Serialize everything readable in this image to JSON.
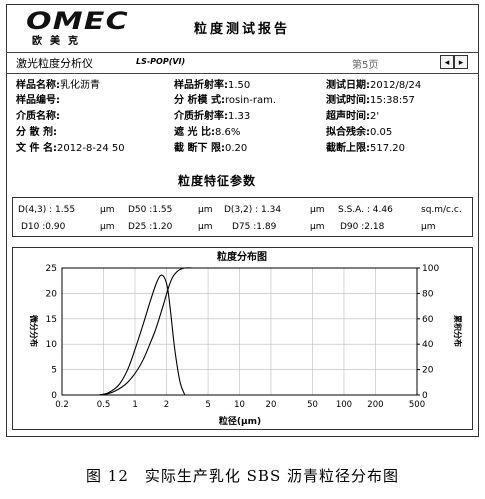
{
  "header": {
    "logo_text": "OMEC",
    "logo_sub": "欧美克",
    "report_title": "粒度测试报告"
  },
  "instrument": {
    "name": "激光粒度分析仪",
    "model": "LS-POP(VI)",
    "page": "第5页",
    "prev_icon": "◂",
    "next_icon": "▸"
  },
  "info": {
    "sample_name_label": "样品名称:",
    "sample_name_value": "乳化沥青",
    "sample_ri_label": "样品折射率:",
    "sample_ri_value": "1.50",
    "test_date_label": "测试日期:",
    "test_date_value": "2012/8/24",
    "sample_no_label": "样品编号:",
    "analysis_mode_label": "分 析模 式:",
    "analysis_mode_value": "rosin-ram.",
    "test_time_label": "测试时间:",
    "test_time_value": "15:38:57",
    "medium_name_label": "介质名称:",
    "medium_ri_label": "介质折射率:",
    "medium_ri_value": "1.33",
    "ultrasonic_label": "超声时间:",
    "ultrasonic_value": "2'",
    "dispersant_label": "分 散 剂:",
    "shading_label": "遮 光 比:",
    "shading_value": "8.6%",
    "residual_label": "拟合残余:",
    "residual_value": "0.05",
    "file_label": "文 件 名:",
    "file_value": "2012-8-24 50",
    "cut_lower_label": "截 断下 限:",
    "cut_lower_value": "0.20",
    "cut_upper_label": "截断上限:",
    "cut_upper_value": "517.20"
  },
  "params": {
    "title": "粒度特征参数",
    "d43_label": "D(4,3) :",
    "d43_value": "1.55",
    "d43_unit": "μm",
    "d50_label": "D50 :",
    "d50_value": "1.55",
    "d50_unit": "μm",
    "d32_label": "D(3,2) :",
    "d32_value": "1.34",
    "d32_unit": "μm",
    "ssa_label": "S.S.A. :",
    "ssa_value": "4.46",
    "ssa_unit": "sq.m/c.c.",
    "d10_label": "D10 :",
    "d10_value": "0.90",
    "d10_unit": "μm",
    "d25_label": "D25 :",
    "d25_value": "1.20",
    "d25_unit": "μm",
    "d75_label": "D75 :",
    "d75_value": "1.89",
    "d75_unit": "μm",
    "d90_label": "D90 :",
    "d90_value": "2.18",
    "d90_unit": "μm"
  },
  "chart_data": {
    "type": "line",
    "title": "粒度分布图",
    "xlabel": "粒径(μm)",
    "ylabel_left": "微分分布",
    "ylabel_right": "累积分布",
    "x_scale": "log",
    "xlim": [
      0.2,
      500
    ],
    "ylim_left": [
      0,
      25
    ],
    "ylim_right": [
      0,
      100
    ],
    "x_ticks": [
      "0.2",
      "0.5",
      "1",
      "2",
      "5",
      "10",
      "20",
      "50",
      "100",
      "200",
      "500"
    ],
    "y_ticks_left": [
      "0",
      "5",
      "10",
      "15",
      "20",
      "25"
    ],
    "y_ticks_right": [
      "0",
      "20",
      "40",
      "60",
      "80",
      "100"
    ],
    "grid": true,
    "series": [
      {
        "axis": "left",
        "x": [
          0.45,
          0.55,
          0.7,
          0.85,
          1.0,
          1.2,
          1.4,
          1.6,
          1.75,
          1.9,
          2.05,
          2.2,
          2.4,
          2.7,
          3.0
        ],
        "values": [
          0,
          0.4,
          2.0,
          5.0,
          9.0,
          14.0,
          18.5,
          22.0,
          23.5,
          23.2,
          21.0,
          16.0,
          9.0,
          2.5,
          0
        ]
      },
      {
        "axis": "right",
        "x": [
          0.45,
          0.6,
          0.8,
          1.0,
          1.2,
          1.4,
          1.55,
          1.7,
          1.9,
          2.1,
          2.3,
          2.6,
          3.0,
          3.5
        ],
        "values": [
          0,
          2,
          8,
          17,
          28,
          41,
          50,
          60,
          73,
          85,
          93,
          98,
          100,
          100
        ]
      }
    ]
  },
  "caption": "图 12　实际生产乳化 SBS 沥青粒径分布图"
}
